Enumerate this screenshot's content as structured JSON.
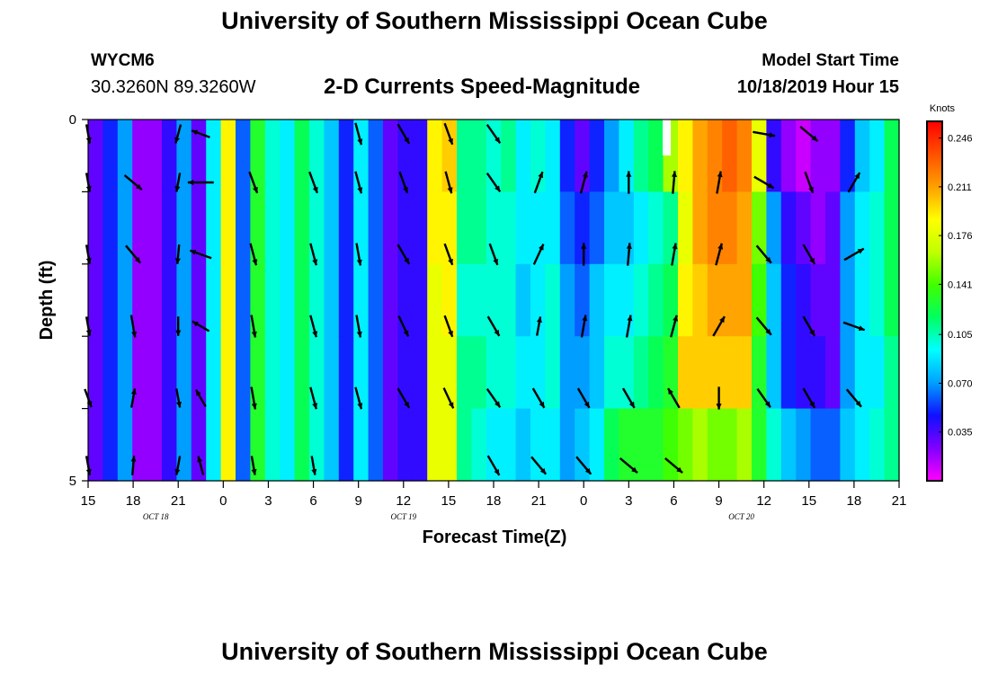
{
  "header": {
    "title": "University of Southern Mississippi Ocean Cube",
    "station_id": "WYCM6",
    "station_coords": "30.3260N 89.3260W",
    "chart_title": "2-D Currents Speed-Magnitude",
    "model_start_label": "Model Start Time",
    "model_start_value": "10/18/2019 Hour 15"
  },
  "footer": {
    "title": "University of Southern Mississippi Ocean Cube"
  },
  "chart_data": {
    "type": "heatmap",
    "title": "2-D Currents Speed-Magnitude",
    "xlabel": "Forecast Time(Z)",
    "ylabel": "Depth (ft)",
    "y_ticks": [
      "0",
      "5"
    ],
    "ylim": [
      0,
      5
    ],
    "x_ticks": [
      "15",
      "18",
      "21",
      "0",
      "3",
      "6",
      "9",
      "12",
      "15",
      "18",
      "21",
      "0",
      "3",
      "6",
      "9",
      "12",
      "15",
      "18",
      "21"
    ],
    "date_labels": [
      {
        "text": "OCT 18",
        "at_tick": 1.5
      },
      {
        "text": "OCT 19",
        "at_tick": 7
      },
      {
        "text": "OCT 20",
        "at_tick": 14.5
      }
    ],
    "colorbar": {
      "unit": "Knots",
      "labels": [
        "0.246",
        "0.211",
        "0.176",
        "0.141",
        "0.105",
        "0.070",
        "0.035"
      ],
      "min": 0.0,
      "max": 0.258,
      "colors": [
        "#ff00ff",
        "#8000ff",
        "#1010ff",
        "#00a0ff",
        "#00ffff",
        "#00ff60",
        "#40ff00",
        "#c0ff00",
        "#ffff00",
        "#ffa000",
        "#ff5000",
        "#ff0000"
      ]
    },
    "grid": false,
    "x_hours": [
      0,
      1,
      2,
      3,
      4,
      5,
      6,
      7,
      8,
      9,
      10,
      11,
      12,
      13,
      14,
      15,
      16,
      17,
      18,
      19,
      20,
      21,
      22,
      23,
      24,
      25,
      26,
      27,
      28,
      29,
      30,
      31,
      32,
      33,
      34,
      35,
      36,
      37,
      38,
      39,
      40,
      41,
      42,
      43,
      44,
      45,
      46,
      47,
      48,
      49,
      50,
      51,
      52,
      53,
      54
    ],
    "depth_bands": [
      0,
      1,
      2,
      3,
      4,
      5
    ],
    "speed_columns": [
      [
        0.03,
        0.03,
        0.03,
        0.03,
        0.03,
        0.03
      ],
      [
        0.05,
        0.05,
        0.05,
        0.05,
        0.05,
        0.05
      ],
      [
        0.07,
        0.07,
        0.07,
        0.07,
        0.07,
        0.07
      ],
      [
        0.02,
        0.02,
        0.02,
        0.02,
        0.02,
        0.02
      ],
      [
        0.02,
        0.02,
        0.02,
        0.02,
        0.02,
        0.02
      ],
      [
        0.04,
        0.04,
        0.04,
        0.04,
        0.04,
        0.04
      ],
      [
        0.07,
        0.07,
        0.07,
        0.07,
        0.07,
        0.07
      ],
      [
        0.03,
        0.03,
        0.03,
        0.03,
        0.03,
        0.03
      ],
      [
        0.09,
        0.09,
        0.09,
        0.09,
        0.09,
        0.09
      ],
      [
        0.19,
        0.19,
        0.19,
        0.19,
        0.19,
        0.19
      ],
      [
        0.06,
        0.06,
        0.06,
        0.06,
        0.06,
        0.06
      ],
      [
        0.13,
        0.13,
        0.13,
        0.13,
        0.13,
        0.13
      ],
      [
        0.1,
        0.1,
        0.1,
        0.1,
        0.1,
        0.1
      ],
      [
        0.09,
        0.09,
        0.09,
        0.09,
        0.09,
        0.09
      ],
      [
        0.12,
        0.12,
        0.12,
        0.12,
        0.12,
        0.12
      ],
      [
        0.1,
        0.1,
        0.1,
        0.1,
        0.1,
        0.1
      ],
      [
        0.08,
        0.08,
        0.08,
        0.08,
        0.08,
        0.08
      ],
      [
        0.05,
        0.05,
        0.05,
        0.05,
        0.05,
        0.05
      ],
      [
        0.09,
        0.09,
        0.09,
        0.09,
        0.09,
        0.09
      ],
      [
        0.06,
        0.06,
        0.06,
        0.06,
        0.06,
        0.06
      ],
      [
        0.03,
        0.03,
        0.03,
        0.03,
        0.03,
        0.03
      ],
      [
        0.04,
        0.04,
        0.04,
        0.04,
        0.04,
        0.04
      ],
      [
        0.04,
        0.04,
        0.04,
        0.04,
        0.04,
        0.04
      ],
      [
        0.19,
        0.19,
        0.18,
        0.18,
        0.18,
        0.16
      ],
      [
        0.2,
        0.19,
        0.19,
        0.18,
        0.18,
        0.17
      ],
      [
        0.11,
        0.11,
        0.1,
        0.11,
        0.11,
        0.12
      ],
      [
        0.11,
        0.11,
        0.1,
        0.11,
        0.1,
        0.12
      ],
      [
        0.1,
        0.1,
        0.1,
        0.1,
        0.09,
        0.09
      ],
      [
        0.11,
        0.1,
        0.1,
        0.1,
        0.09,
        0.09
      ],
      [
        0.09,
        0.09,
        0.08,
        0.09,
        0.08,
        0.09
      ],
      [
        0.1,
        0.09,
        0.09,
        0.09,
        0.09,
        0.1
      ],
      [
        0.09,
        0.09,
        0.1,
        0.1,
        0.09,
        0.1
      ],
      [
        0.05,
        0.06,
        0.07,
        0.07,
        0.07,
        0.07
      ],
      [
        0.03,
        0.05,
        0.06,
        0.07,
        0.08,
        0.08
      ],
      [
        0.05,
        0.06,
        0.08,
        0.08,
        0.09,
        0.12
      ],
      [
        0.07,
        0.08,
        0.09,
        0.1,
        0.12,
        0.14
      ],
      [
        0.09,
        0.08,
        0.09,
        0.1,
        0.13,
        0.14
      ],
      [
        0.11,
        0.09,
        0.1,
        0.11,
        0.13,
        0.14
      ],
      [
        0.12,
        0.1,
        0.11,
        0.12,
        0.13,
        0.13
      ],
      [
        0.16,
        0.11,
        0.12,
        0.13,
        0.14,
        0.13
      ],
      [
        0.19,
        0.18,
        0.19,
        0.2,
        0.15,
        0.14
      ],
      [
        0.21,
        0.21,
        0.2,
        0.2,
        0.16,
        0.13
      ],
      [
        0.22,
        0.22,
        0.21,
        0.2,
        0.15,
        0.13
      ],
      [
        0.23,
        0.22,
        0.21,
        0.2,
        0.15,
        0.12
      ],
      [
        0.22,
        0.21,
        0.21,
        0.2,
        0.16,
        0.12
      ],
      [
        0.18,
        0.15,
        0.14,
        0.13,
        0.13,
        0.12
      ],
      [
        0.04,
        0.07,
        0.08,
        0.08,
        0.1,
        0.12
      ],
      [
        0.02,
        0.04,
        0.05,
        0.05,
        0.08,
        0.11
      ],
      [
        0.01,
        0.03,
        0.04,
        0.04,
        0.07,
        0.11
      ],
      [
        0.02,
        0.02,
        0.03,
        0.04,
        0.06,
        0.1
      ],
      [
        0.02,
        0.03,
        0.03,
        0.03,
        0.06,
        0.1
      ],
      [
        0.05,
        0.07,
        0.07,
        0.07,
        0.08,
        0.11
      ],
      [
        0.08,
        0.09,
        0.09,
        0.09,
        0.09,
        0.12
      ],
      [
        0.09,
        0.1,
        0.1,
        0.09,
        0.1,
        0.12
      ],
      [
        0.12,
        0.12,
        0.12,
        0.11,
        0.11,
        0.12
      ]
    ],
    "vectors": [
      {
        "hour": 0,
        "dir": [
          [
            170,
            0.6
          ],
          [
            170,
            0.6
          ],
          [
            170,
            0.6
          ],
          [
            170,
            0.6
          ],
          [
            160,
            0.6
          ],
          [
            170,
            0.6
          ]
        ]
      },
      {
        "hour": 3,
        "dir": [
          [
            null,
            0
          ],
          [
            130,
            0.7
          ],
          [
            140,
            0.7
          ],
          [
            170,
            0.7
          ],
          [
            10,
            0.6
          ],
          [
            5,
            0.6
          ]
        ]
      },
      {
        "hour": 6,
        "dir": [
          [
            195,
            0.6
          ],
          [
            190,
            0.6
          ],
          [
            185,
            0.6
          ],
          [
            180,
            0.6
          ],
          [
            170,
            0.6
          ],
          [
            190,
            0.6
          ]
        ]
      },
      {
        "hour": 7.5,
        "dir": [
          [
            290,
            0.6
          ],
          [
            270,
            0.8
          ],
          [
            290,
            0.7
          ],
          [
            300,
            0.6
          ],
          [
            330,
            0.6
          ],
          [
            345,
            0.6
          ]
        ]
      },
      {
        "hour": 11,
        "dir": [
          [
            null,
            0
          ],
          [
            160,
            0.7
          ],
          [
            165,
            0.7
          ],
          [
            170,
            0.7
          ],
          [
            170,
            0.7
          ],
          [
            170,
            0.6
          ]
        ]
      },
      {
        "hour": 15,
        "dir": [
          [
            null,
            0
          ],
          [
            160,
            0.7
          ],
          [
            165,
            0.7
          ],
          [
            165,
            0.7
          ],
          [
            165,
            0.7
          ],
          [
            170,
            0.6
          ]
        ]
      },
      {
        "hour": 18,
        "dir": [
          [
            165,
            0.7
          ],
          [
            165,
            0.7
          ],
          [
            170,
            0.7
          ],
          [
            170,
            0.7
          ],
          [
            165,
            0.7
          ],
          [
            null,
            0
          ]
        ]
      },
      {
        "hour": 21,
        "dir": [
          [
            150,
            0.7
          ],
          [
            160,
            0.7
          ],
          [
            150,
            0.7
          ],
          [
            155,
            0.7
          ],
          [
            150,
            0.7
          ],
          [
            null,
            0
          ]
        ]
      },
      {
        "hour": 24,
        "dir": [
          [
            160,
            0.7
          ],
          [
            165,
            0.7
          ],
          [
            160,
            0.7
          ],
          [
            160,
            0.7
          ],
          [
            155,
            0.7
          ],
          [
            null,
            0
          ]
        ]
      },
      {
        "hour": 27,
        "dir": [
          [
            145,
            0.7
          ],
          [
            145,
            0.7
          ],
          [
            160,
            0.7
          ],
          [
            150,
            0.7
          ],
          [
            145,
            0.7
          ],
          [
            150,
            0.7
          ]
        ]
      },
      {
        "hour": 30,
        "dir": [
          [
            null,
            0
          ],
          [
            20,
            0.7
          ],
          [
            25,
            0.7
          ],
          [
            10,
            0.6
          ],
          [
            150,
            0.7
          ],
          [
            140,
            0.7
          ]
        ]
      },
      {
        "hour": 33,
        "dir": [
          [
            null,
            0
          ],
          [
            15,
            0.7
          ],
          [
            0,
            0.7
          ],
          [
            10,
            0.7
          ],
          [
            150,
            0.7
          ],
          [
            140,
            0.7
          ]
        ]
      },
      {
        "hour": 36,
        "dir": [
          [
            null,
            0
          ],
          [
            0,
            0.7
          ],
          [
            5,
            0.7
          ],
          [
            10,
            0.7
          ],
          [
            150,
            0.7
          ],
          [
            130,
            0.7
          ]
        ]
      },
      {
        "hour": 39,
        "dir": [
          [
            null,
            0
          ],
          [
            5,
            0.7
          ],
          [
            10,
            0.7
          ],
          [
            15,
            0.7
          ],
          [
            330,
            0.7
          ],
          [
            130,
            0.7
          ]
        ]
      },
      {
        "hour": 42,
        "dir": [
          [
            null,
            0
          ],
          [
            10,
            0.7
          ],
          [
            15,
            0.7
          ],
          [
            30,
            0.7
          ],
          [
            180,
            0.7
          ],
          [
            null,
            0
          ]
        ]
      },
      {
        "hour": 45,
        "dir": [
          [
            100,
            0.7
          ],
          [
            120,
            0.7
          ],
          [
            140,
            0.7
          ],
          [
            140,
            0.7
          ],
          [
            145,
            0.7
          ],
          [
            null,
            0
          ]
        ]
      },
      {
        "hour": 48,
        "dir": [
          [
            130,
            0.7
          ],
          [
            160,
            0.7
          ],
          [
            150,
            0.7
          ],
          [
            150,
            0.7
          ],
          [
            150,
            0.7
          ],
          [
            null,
            0
          ]
        ]
      },
      {
        "hour": 51,
        "dir": [
          [
            null,
            0
          ],
          [
            30,
            0.7
          ],
          [
            60,
            0.7
          ],
          [
            110,
            0.7
          ],
          [
            140,
            0.7
          ],
          [
            null,
            0
          ]
        ]
      }
    ],
    "missing_cell": {
      "hour": 38.5,
      "band": 0
    }
  }
}
